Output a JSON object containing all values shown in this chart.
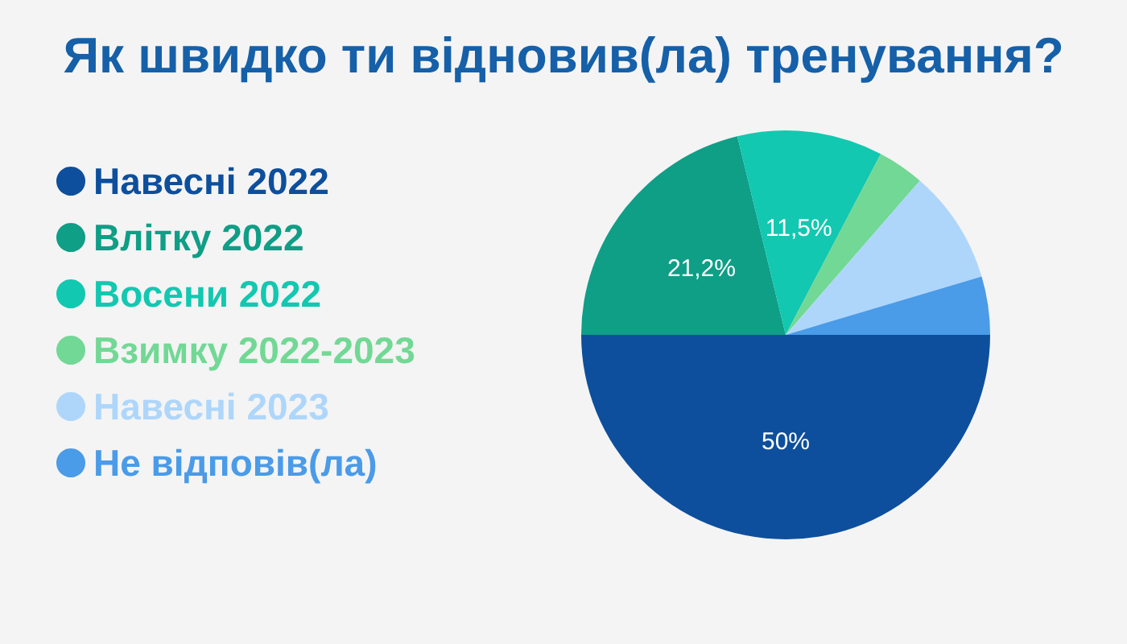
{
  "chart_data": {
    "type": "pie",
    "title": "Як швидко ти відновив(ла) тренування?",
    "categories": [
      "Навесні 2022",
      "Влітку 2022",
      "Восени 2022",
      "Взимку 2022-2023",
      "Навесні 2023",
      "Не відповів(ла)"
    ],
    "values": [
      50,
      21.2,
      11.5,
      3.7,
      9.0,
      4.6
    ],
    "colors": [
      "#0d4f9c",
      "#0f9e86",
      "#12c8b0",
      "#72d895",
      "#aed6fb",
      "#4a9be8"
    ],
    "value_labels": [
      "50%",
      "21,2%",
      "11,5%",
      null,
      null,
      null
    ],
    "legend": "left"
  }
}
